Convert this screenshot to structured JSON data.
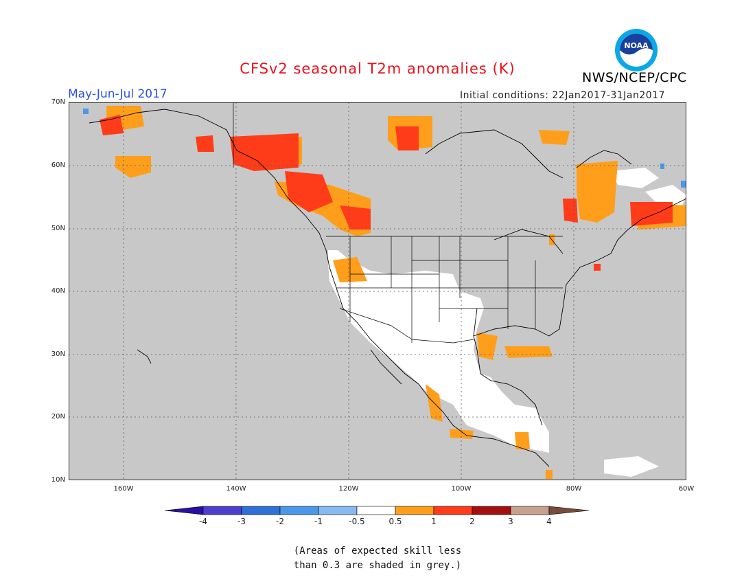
{
  "header": {
    "title": "CFSv2 seasonal T2m anomalies (K)",
    "period": "May-Jun-Jul 2017",
    "initial_conditions": "Initial conditions: 22Jan2017-31Jan2017",
    "organization": "NWS/NCEP/CPC",
    "logo_text": "NOAA"
  },
  "map": {
    "background_color": "#c8c8c8",
    "lat_labels": [
      "70N",
      "60N",
      "50N",
      "40N",
      "30N",
      "20N",
      "10N"
    ],
    "lon_labels": [
      "160W",
      "140W",
      "120W",
      "100W",
      "80W",
      "60W"
    ]
  },
  "colorbar": {
    "tick_labels": [
      "-4",
      "-3",
      "-2",
      "-1",
      "-0.5",
      "0.5",
      "1",
      "2",
      "3",
      "4"
    ],
    "colors": [
      "#2a0fa3",
      "#4a3fd0",
      "#2f6fd8",
      "#4b98e8",
      "#86baf0",
      "#ffffff",
      "#ff9e1a",
      "#ff3c1a",
      "#a30f0f",
      "#c8a090",
      "#7a4a3a"
    ]
  },
  "note": {
    "line1": "(Areas of expected skill less",
    "line2": "than 0.3 are shaded in grey.)"
  }
}
